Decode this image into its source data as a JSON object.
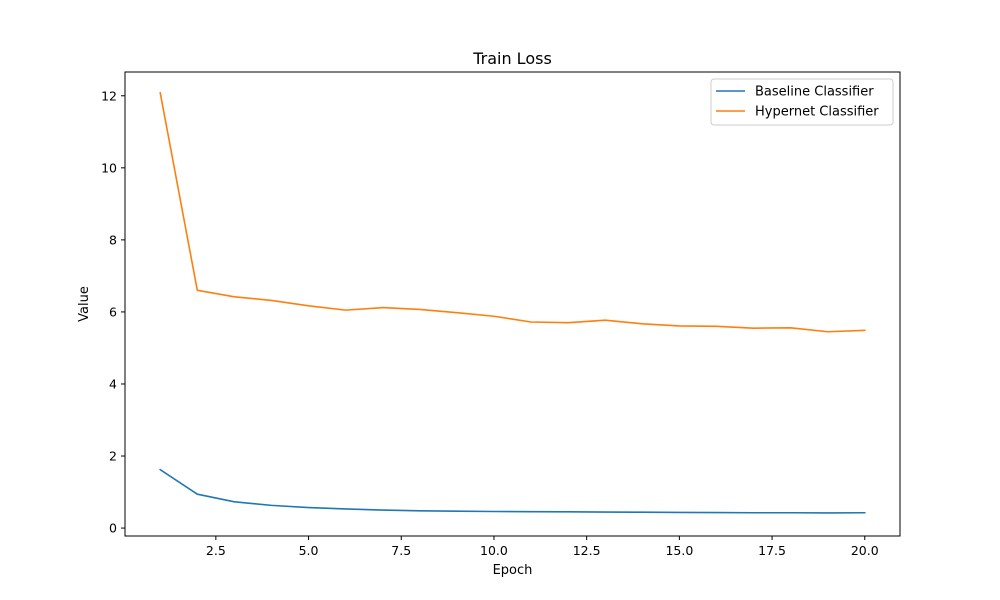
{
  "chart_data": {
    "type": "line",
    "title": "Train Loss",
    "xlabel": "Epoch",
    "ylabel": "Value",
    "xlim": [
      0.05,
      20.95
    ],
    "ylim": [
      -0.22,
      12.66
    ],
    "xticks": [
      2.5,
      5.0,
      7.5,
      10.0,
      12.5,
      15.0,
      17.5,
      20.0
    ],
    "xtick_labels": [
      "2.5",
      "5.0",
      "7.5",
      "10.0",
      "12.5",
      "15.0",
      "17.5",
      "20.0"
    ],
    "yticks": [
      0,
      2,
      4,
      6,
      8,
      10,
      12
    ],
    "ytick_labels": [
      "0",
      "2",
      "4",
      "6",
      "8",
      "10",
      "12"
    ],
    "grid": false,
    "legend_position": "top-right",
    "x": [
      1,
      2,
      3,
      4,
      5,
      6,
      7,
      8,
      9,
      10,
      11,
      12,
      13,
      14,
      15,
      16,
      17,
      18,
      19,
      20
    ],
    "series": [
      {
        "name": "Baseline Classifier",
        "color": "#1f77b4",
        "values": [
          1.62,
          0.94,
          0.73,
          0.63,
          0.57,
          0.53,
          0.5,
          0.48,
          0.47,
          0.46,
          0.455,
          0.45,
          0.445,
          0.44,
          0.435,
          0.43,
          0.425,
          0.425,
          0.42,
          0.425
        ]
      },
      {
        "name": "Hypernet Classifier",
        "color": "#ff7f0e",
        "values": [
          12.08,
          6.6,
          6.42,
          6.32,
          6.17,
          6.05,
          6.12,
          6.07,
          5.98,
          5.88,
          5.72,
          5.7,
          5.77,
          5.67,
          5.61,
          5.6,
          5.55,
          5.56,
          5.45,
          5.49
        ]
      }
    ]
  }
}
